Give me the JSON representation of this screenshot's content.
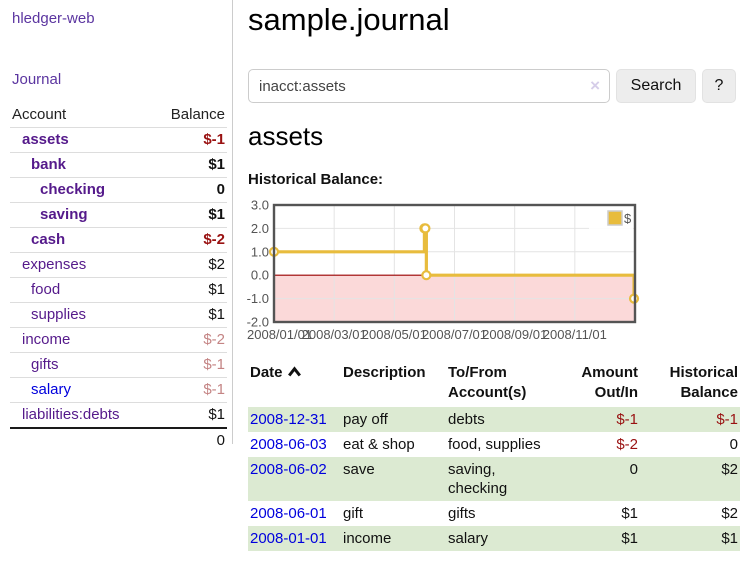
{
  "app": {
    "brand": "hledger-web",
    "nav_journal": "Journal"
  },
  "sidebar": {
    "accounts_header": {
      "account": "Account",
      "balance": "Balance"
    },
    "accounts": [
      {
        "name": "assets",
        "balance": "$-1",
        "level": 0,
        "bold": true,
        "balance_class": "neg"
      },
      {
        "name": "bank",
        "balance": "$1",
        "level": 1,
        "bold": true,
        "balance_class": ""
      },
      {
        "name": "checking",
        "balance": "0",
        "level": 2,
        "bold": true,
        "balance_class": ""
      },
      {
        "name": "saving",
        "balance": "$1",
        "level": 2,
        "bold": true,
        "balance_class": ""
      },
      {
        "name": "cash",
        "balance": "$-2",
        "level": 1,
        "bold": true,
        "balance_class": "neg"
      },
      {
        "name": "expenses",
        "balance": "$2",
        "level": 0,
        "bold": false,
        "balance_class": ""
      },
      {
        "name": "food",
        "balance": "$1",
        "level": 1,
        "bold": false,
        "balance_class": ""
      },
      {
        "name": "supplies",
        "balance": "$1",
        "level": 1,
        "bold": false,
        "balance_class": ""
      },
      {
        "name": "income",
        "balance": "$-2",
        "level": 0,
        "bold": false,
        "balance_class": "neg-dim"
      },
      {
        "name": "gifts",
        "balance": "$-1",
        "level": 1,
        "bold": false,
        "balance_class": "neg-dim"
      },
      {
        "name": "salary",
        "balance": "$-1",
        "level": 1,
        "bold": false,
        "balance_class": "neg-dim",
        "link_color": "blue"
      },
      {
        "name": "liabilities:debts",
        "balance": "$1",
        "level": 0,
        "bold": false,
        "balance_class": ""
      }
    ],
    "total": "0"
  },
  "header": {
    "title": "sample.journal"
  },
  "search": {
    "value": "inacct:assets",
    "clear_icon": "×",
    "button_label": "Search",
    "help_label": "?"
  },
  "account_page": {
    "heading": "assets",
    "chart_label": "Historical Balance:"
  },
  "chart_data": {
    "type": "line",
    "step": true,
    "title": "Historical Balance",
    "ylim": [
      -2,
      3
    ],
    "xlim_months": [
      0,
      12
    ],
    "y_ticks": [
      3,
      2,
      1,
      0,
      -1,
      -2
    ],
    "x_ticks": [
      {
        "label": "2008/01/01",
        "month": 0
      },
      {
        "label": "2008/03/01",
        "month": 2
      },
      {
        "label": "2008/05/01",
        "month": 4
      },
      {
        "label": "2008/07/01",
        "month": 6
      },
      {
        "label": "2008/09/01",
        "month": 8
      },
      {
        "label": "2008/11/01",
        "month": 10
      }
    ],
    "grid_months": [
      2,
      4,
      6,
      8,
      10
    ],
    "grid_y": [
      2,
      1,
      -1
    ],
    "series": [
      {
        "name": "$",
        "color": "#e8bc3d",
        "marker": "open-circle",
        "points": [
          {
            "date": "2008-01-01",
            "value": 1
          },
          {
            "date": "2008-06-01",
            "value": 2
          },
          {
            "date": "2008-06-02",
            "value": 2
          },
          {
            "date": "2008-06-03",
            "value": 0
          },
          {
            "date": "2008-12-31",
            "value": -1
          }
        ]
      }
    ],
    "negative_region": {
      "from": 0,
      "to": -2,
      "fill": "#fbd9d9",
      "line_color": "#990000"
    },
    "legend": {
      "label": "$",
      "position": "top-right"
    },
    "axis_color": "#545454",
    "border_color": "#545454",
    "grid_color": "#e4e4e4"
  },
  "register": {
    "headers": [
      {
        "label": "Date",
        "align": "left",
        "sorted": "ascending",
        "sort_icon": "chevron-up"
      },
      {
        "label": "Description",
        "align": "left"
      },
      {
        "label": "To/From Account(s)",
        "align": "left"
      },
      {
        "label": "Amount Out/In",
        "align": "right"
      },
      {
        "label": "Historical Balance",
        "align": "right"
      }
    ],
    "rows": [
      {
        "date": "2008-12-31",
        "description": "pay off",
        "accounts": "debts",
        "amount": "$-1",
        "amount_neg": true,
        "balance": "$-1",
        "balance_neg": true,
        "green": true
      },
      {
        "date": "2008-06-03",
        "description": "eat & shop",
        "accounts": "food, supplies",
        "amount": "$-2",
        "amount_neg": true,
        "balance": "0",
        "balance_neg": false,
        "green": false
      },
      {
        "date": "2008-06-02",
        "description": "save",
        "accounts": "saving, checking",
        "amount": "0",
        "amount_neg": false,
        "balance": "$2",
        "balance_neg": false,
        "green": true
      },
      {
        "date": "2008-06-01",
        "description": "gift",
        "accounts": "gifts",
        "amount": "$1",
        "amount_neg": false,
        "balance": "$2",
        "balance_neg": false,
        "green": false
      },
      {
        "date": "2008-01-01",
        "description": "income",
        "accounts": "salary",
        "amount": "$1",
        "amount_neg": false,
        "balance": "$1",
        "balance_neg": false,
        "green": true
      }
    ]
  },
  "colors": {
    "link_purple": "#551a8b",
    "link_blue": "#0000dd",
    "negative": "#991111",
    "negative_dim": "#c48484",
    "row_green": "#dcead2",
    "series_gold": "#e8bc3d",
    "region_pink": "#fbd9d9",
    "zero_line_red": "#990000"
  }
}
